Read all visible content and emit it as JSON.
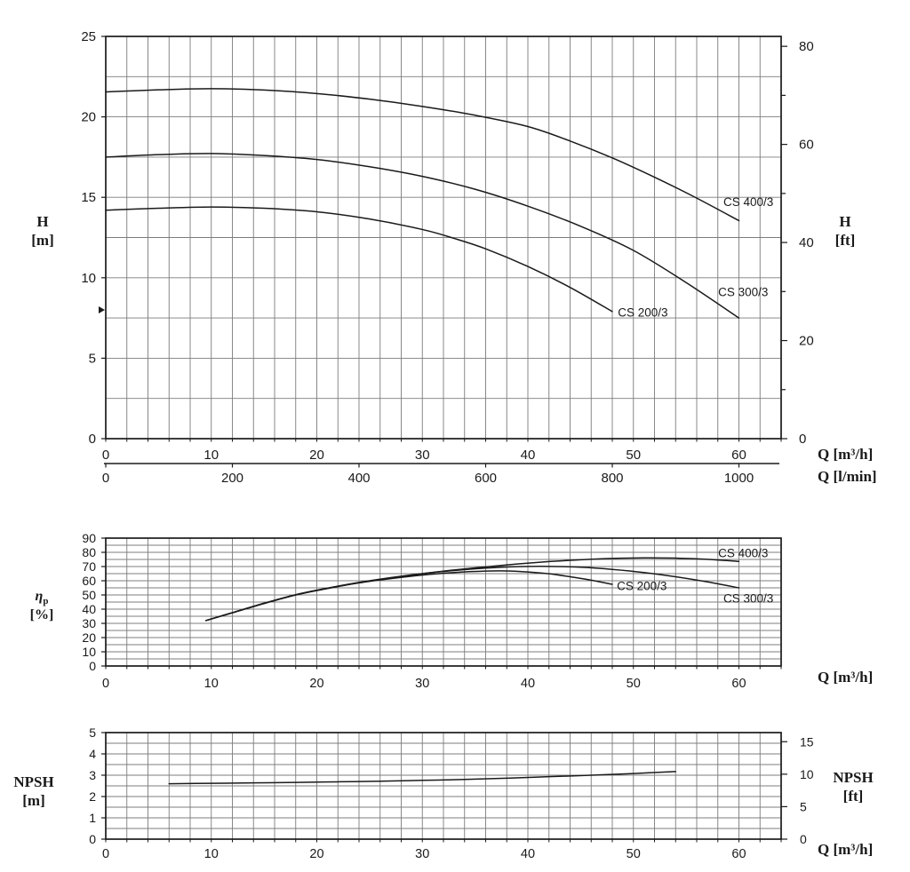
{
  "style": {
    "ink": "#1a1a1a",
    "grid": "#7c7c7c",
    "background": "#ffffff"
  },
  "chart_data": [
    {
      "id": "head",
      "type": "line",
      "y_axis_left": {
        "title": "H",
        "unit": "[m]",
        "min": 0,
        "max": 25,
        "grid_step": 2.5,
        "label_step": 5
      },
      "y_axis_right": {
        "title": "H",
        "unit": "[ft]",
        "tick_step": 10,
        "labeled_ticks": [
          0,
          20,
          40,
          60,
          80
        ],
        "to_base": 0.3048
      },
      "x_axis": {
        "title": "Q [m³/h]",
        "min": 0,
        "max": 64,
        "grid_step": 2,
        "label_step": 10
      },
      "x_axis_secondary": {
        "title": "Q [l/min]",
        "ticks": [
          0,
          200,
          400,
          600,
          800,
          1000
        ],
        "to_primary": 0.06
      },
      "axis_marker": {
        "value": 8
      },
      "series": [
        {
          "name": "CS 400/3",
          "points": [
            [
              0,
              21.55
            ],
            [
              5,
              21.68
            ],
            [
              10,
              21.75
            ],
            [
              15,
              21.67
            ],
            [
              20,
              21.45
            ],
            [
              25,
              21.1
            ],
            [
              30,
              20.65
            ],
            [
              35,
              20.1
            ],
            [
              40,
              19.4
            ],
            [
              44,
              18.5
            ],
            [
              48,
              17.45
            ],
            [
              52,
              16.25
            ],
            [
              56,
              14.95
            ],
            [
              60,
              13.55
            ]
          ],
          "label_at": [
            60.9,
            14.7
          ]
        },
        {
          "name": "CS 300/3",
          "points": [
            [
              0,
              17.5
            ],
            [
              5,
              17.65
            ],
            [
              10,
              17.72
            ],
            [
              15,
              17.6
            ],
            [
              20,
              17.35
            ],
            [
              25,
              16.9
            ],
            [
              30,
              16.3
            ],
            [
              35,
              15.5
            ],
            [
              40,
              14.45
            ],
            [
              45,
              13.2
            ],
            [
              50,
              11.7
            ],
            [
              55,
              9.7
            ],
            [
              60,
              7.5
            ]
          ],
          "label_at": [
            60.4,
            9.1
          ]
        },
        {
          "name": "CS 200/3",
          "points": [
            [
              0,
              14.2
            ],
            [
              5,
              14.32
            ],
            [
              10,
              14.4
            ],
            [
              15,
              14.32
            ],
            [
              20,
              14.1
            ],
            [
              25,
              13.65
            ],
            [
              30,
              13.0
            ],
            [
              33,
              12.45
            ],
            [
              36,
              11.8
            ],
            [
              40,
              10.7
            ],
            [
              44,
              9.4
            ],
            [
              48,
              7.9
            ]
          ],
          "label_at": [
            50.9,
            7.85
          ]
        }
      ]
    },
    {
      "id": "efficiency",
      "type": "line",
      "y_axis_left": {
        "title": "η",
        "title_sub": "p",
        "unit": "[%]",
        "min": 0,
        "max": 90,
        "grid_step": 5,
        "label_step": 10
      },
      "x_axis": {
        "title": "Q [m³/h]",
        "min": 0,
        "max": 64,
        "grid_step": 2,
        "label_step": 10
      },
      "series": [
        {
          "name": "CS 400/3",
          "points": [
            [
              9.5,
              32
            ],
            [
              12,
              37.5
            ],
            [
              15,
              44
            ],
            [
              18,
              50
            ],
            [
              21,
              54.6
            ],
            [
              24,
              58.6
            ],
            [
              27,
              62
            ],
            [
              30,
              65
            ],
            [
              33,
              67.6
            ],
            [
              36,
              69.8
            ],
            [
              39,
              71.8
            ],
            [
              42,
              73.5
            ],
            [
              45,
              74.8
            ],
            [
              48,
              75.7
            ],
            [
              51,
              76.1
            ],
            [
              54,
              75.9
            ],
            [
              57,
              75.1
            ],
            [
              60,
              73.6
            ]
          ],
          "label_at": [
            60.4,
            79.5
          ]
        },
        {
          "name": "CS 300/3",
          "points": [
            [
              9.5,
              32
            ],
            [
              12,
              37.5
            ],
            [
              15,
              44.2
            ],
            [
              18,
              50.2
            ],
            [
              21,
              54.8
            ],
            [
              24,
              58.8
            ],
            [
              27,
              62.2
            ],
            [
              30,
              65
            ],
            [
              33,
              67.2
            ],
            [
              36,
              68.9
            ],
            [
              39,
              69.9
            ],
            [
              42,
              70.1
            ],
            [
              45,
              69.5
            ],
            [
              48,
              68
            ],
            [
              51,
              65.8
            ],
            [
              54,
              62.8
            ],
            [
              57,
              59.2
            ],
            [
              60,
              55
            ]
          ],
          "label_at": [
            60.9,
            47.5
          ]
        },
        {
          "name": "CS 200/3",
          "points": [
            [
              9.5,
              32
            ],
            [
              12,
              37.5
            ],
            [
              15,
              44
            ],
            [
              18,
              50
            ],
            [
              21,
              54.5
            ],
            [
              24,
              58.5
            ],
            [
              27,
              61.5
            ],
            [
              30,
              64
            ],
            [
              33,
              65.8
            ],
            [
              36,
              66.8
            ],
            [
              38,
              66.9
            ],
            [
              40,
              66.2
            ],
            [
              42,
              64.9
            ],
            [
              44,
              62.8
            ],
            [
              46,
              60.4
            ],
            [
              48,
              57.5
            ]
          ],
          "label_at": [
            50.8,
            56.3
          ]
        }
      ]
    },
    {
      "id": "npsh",
      "type": "line",
      "y_axis_left": {
        "title": "NPSH",
        "unit": "[m]",
        "min": 0,
        "max": 5,
        "grid_step": 0.5,
        "label_step": 1
      },
      "y_axis_right": {
        "title": "NPSH",
        "unit": "[ft]",
        "tick_step": 5,
        "labeled_ticks": [
          0,
          5,
          10,
          15
        ],
        "to_base": 0.3048
      },
      "x_axis": {
        "title": "Q [m³/h]",
        "min": 0,
        "max": 64,
        "grid_step": 2,
        "label_step": 10
      },
      "series": [
        {
          "name": "NPSH",
          "points": [
            [
              6,
              2.6
            ],
            [
              10,
              2.62
            ],
            [
              14,
              2.64
            ],
            [
              18,
              2.66
            ],
            [
              22,
              2.69
            ],
            [
              26,
              2.72
            ],
            [
              30,
              2.76
            ],
            [
              34,
              2.8
            ],
            [
              38,
              2.86
            ],
            [
              42,
              2.93
            ],
            [
              46,
              3.0
            ],
            [
              50,
              3.08
            ],
            [
              54,
              3.17
            ]
          ]
        }
      ]
    }
  ]
}
